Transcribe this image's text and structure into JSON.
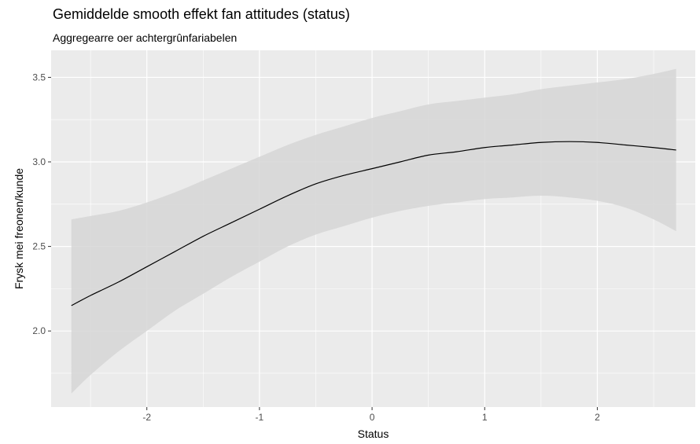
{
  "chart_data": {
    "type": "line",
    "title": "Gemiddelde smooth effekt fan attitudes (status)",
    "subtitle": "Aggregearre oer achtergrûnfariabelen",
    "xlabel": "Status",
    "ylabel": "Frysk mei freonen/kunde",
    "xlim": [
      -2.85,
      2.87
    ],
    "ylim": [
      1.55,
      3.66
    ],
    "x_ticks": [
      -2,
      -1,
      0,
      1,
      2
    ],
    "x_tick_labels": [
      "-2",
      "-1",
      "0",
      "1",
      "2"
    ],
    "y_ticks": [
      2.0,
      2.5,
      3.0,
      3.5
    ],
    "y_tick_labels": [
      "2.0",
      "2.5",
      "3.0",
      "3.5"
    ],
    "grid": true,
    "colors": {
      "panel": "#ebebeb",
      "grid": "#ffffff",
      "band": "#d6d6d6",
      "line": "#000000"
    },
    "series": [
      {
        "x": [
          -2.67,
          -2.5,
          -2.25,
          -2.0,
          -1.75,
          -1.5,
          -1.25,
          -1.0,
          -0.75,
          -0.5,
          -0.25,
          0.0,
          0.25,
          0.5,
          0.75,
          1.0,
          1.25,
          1.5,
          1.75,
          2.0,
          2.25,
          2.5,
          2.7
        ],
        "y": [
          2.15,
          2.21,
          2.29,
          2.38,
          2.47,
          2.56,
          2.64,
          2.72,
          2.8,
          2.87,
          2.92,
          2.96,
          3.0,
          3.04,
          3.06,
          3.085,
          3.1,
          3.115,
          3.12,
          3.115,
          3.1,
          3.085,
          3.07
        ],
        "lower": [
          1.63,
          1.74,
          1.88,
          2.0,
          2.12,
          2.22,
          2.32,
          2.41,
          2.5,
          2.57,
          2.62,
          2.67,
          2.71,
          2.74,
          2.76,
          2.78,
          2.79,
          2.8,
          2.79,
          2.77,
          2.73,
          2.66,
          2.59
        ],
        "upper": [
          2.66,
          2.68,
          2.71,
          2.76,
          2.82,
          2.89,
          2.96,
          3.03,
          3.1,
          3.16,
          3.21,
          3.26,
          3.3,
          3.34,
          3.36,
          3.38,
          3.4,
          3.43,
          3.45,
          3.47,
          3.49,
          3.52,
          3.55
        ]
      }
    ]
  }
}
